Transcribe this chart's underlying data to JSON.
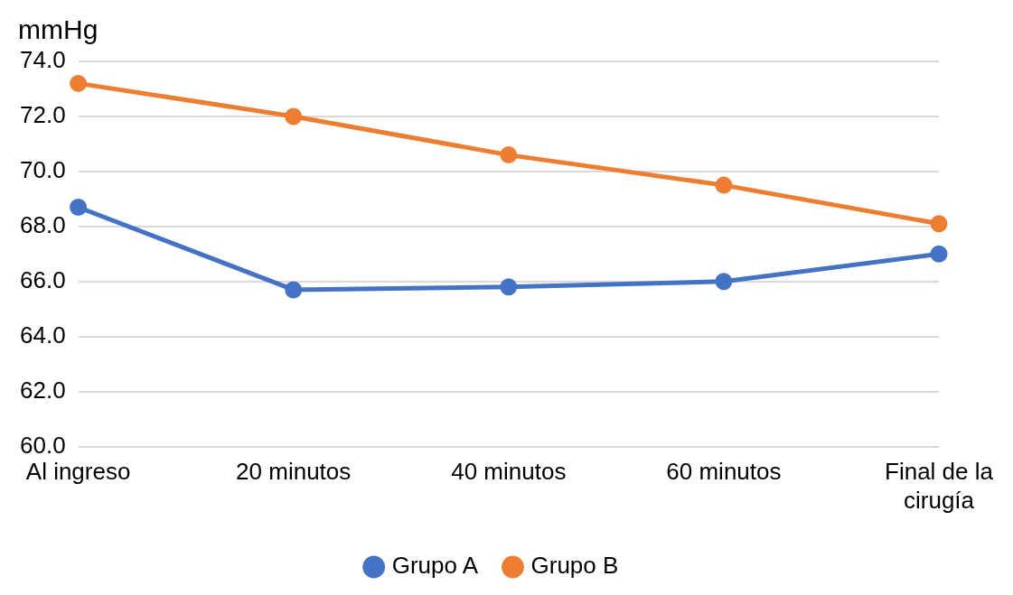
{
  "chart_data": {
    "type": "line",
    "ylabel": "mmHg",
    "categories": [
      "Al ingreso",
      "20 minutos",
      "40 minutos",
      "60 minutos",
      "Final de la cirugía"
    ],
    "series": [
      {
        "name": "Grupo A",
        "color": "#4472c4",
        "values": [
          68.7,
          65.7,
          65.8,
          66.0,
          67.0
        ]
      },
      {
        "name": "Grupo B",
        "color": "#ed7d31",
        "values": [
          73.2,
          72.0,
          70.6,
          69.5,
          68.1
        ]
      }
    ],
    "ylim": [
      60,
      74
    ],
    "yticks": [
      {
        "value": 60,
        "label": "60.0"
      },
      {
        "value": 62,
        "label": "62.0"
      },
      {
        "value": 64,
        "label": "64.0"
      },
      {
        "value": 66,
        "label": "66.0"
      },
      {
        "value": 68,
        "label": "68.0"
      },
      {
        "value": 70,
        "label": "70.0"
      },
      {
        "value": 72,
        "label": "72.0"
      },
      {
        "value": 74,
        "label": "74.0"
      }
    ],
    "grid": "y",
    "legend": "bottom",
    "marker": "circle",
    "line_style": "solid"
  }
}
